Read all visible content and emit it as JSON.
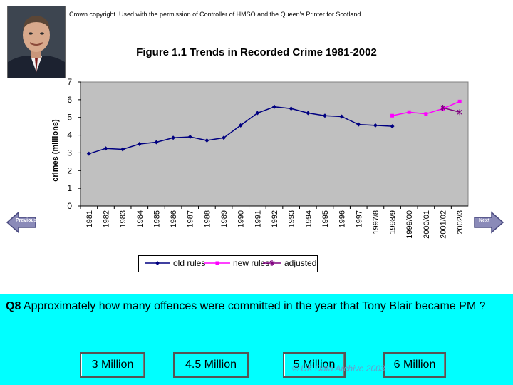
{
  "header": {
    "copyright": "Crown copyright. Used with the permission of Controller of HMSO and the Queen's Printer for Scotland."
  },
  "chart_data": {
    "type": "line",
    "title": "Figure 1.1 Trends in Recorded Crime 1981-2002",
    "ylabel": "crimes (millions)",
    "xlabel": "",
    "ylim": [
      0,
      7
    ],
    "yticks": [
      "0",
      "1",
      "2",
      "3",
      "4",
      "5",
      "6",
      "7"
    ],
    "categories": [
      "1981",
      "1982",
      "1983",
      "1984",
      "1985",
      "1986",
      "1987",
      "1988",
      "1989",
      "1990",
      "1991",
      "1992",
      "1993",
      "1994",
      "1995",
      "1996",
      "1997",
      "1997/8",
      "1998/9",
      "1999/00",
      "2000/01",
      "2001/02",
      "2002/3"
    ],
    "series": [
      {
        "name": "old rules",
        "color": "#000080",
        "marker": "diamond",
        "values": [
          2.95,
          3.25,
          3.2,
          3.5,
          3.6,
          3.85,
          3.9,
          3.7,
          3.85,
          4.55,
          5.25,
          5.6,
          5.5,
          5.25,
          5.1,
          5.05,
          4.6,
          4.55,
          4.5,
          null,
          null,
          null,
          null
        ]
      },
      {
        "name": "new rules",
        "color": "#ff00ff",
        "marker": "square",
        "values": [
          null,
          null,
          null,
          null,
          null,
          null,
          null,
          null,
          null,
          null,
          null,
          null,
          null,
          null,
          null,
          null,
          null,
          null,
          5.1,
          5.3,
          5.2,
          5.5,
          5.9
        ]
      },
      {
        "name": "adjusted",
        "color": "#800080",
        "marker": "star",
        "values": [
          null,
          null,
          null,
          null,
          null,
          null,
          null,
          null,
          null,
          null,
          null,
          null,
          null,
          null,
          null,
          null,
          null,
          null,
          null,
          null,
          null,
          5.55,
          5.3
        ]
      }
    ],
    "legend_position": "bottom"
  },
  "nav": {
    "previous_label": "Previous",
    "next_label": "Next"
  },
  "question": {
    "number": "Q8",
    "text": " Approximately how many offences were committed in the year that Tony Blair became PM ?"
  },
  "answers": [
    "3 Million",
    "4.5 Million",
    "5 Million",
    "6 Million"
  ],
  "watermark": "© UK Data Archive 2003",
  "colors": {
    "panel": "#00ffff",
    "plot_background": "#c0c0c0"
  }
}
